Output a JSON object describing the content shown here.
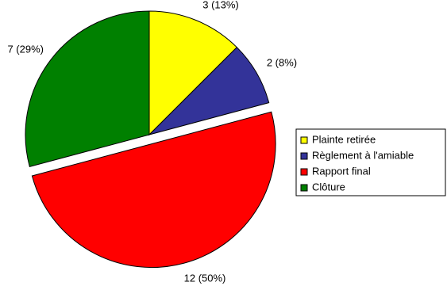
{
  "chart_data": {
    "type": "pie",
    "categories": [
      "Plainte retirée",
      "Règlement à l'amiable",
      "Rapport final",
      "Clôture"
    ],
    "values": [
      3,
      2,
      12,
      7
    ],
    "value_labels": [
      "3 (13%)",
      "2 (8%)",
      "12 (50%)",
      "7 (29%)"
    ],
    "colors": [
      "#ffff00",
      "#333399",
      "#ff0000",
      "#008000"
    ],
    "legend": "right"
  }
}
